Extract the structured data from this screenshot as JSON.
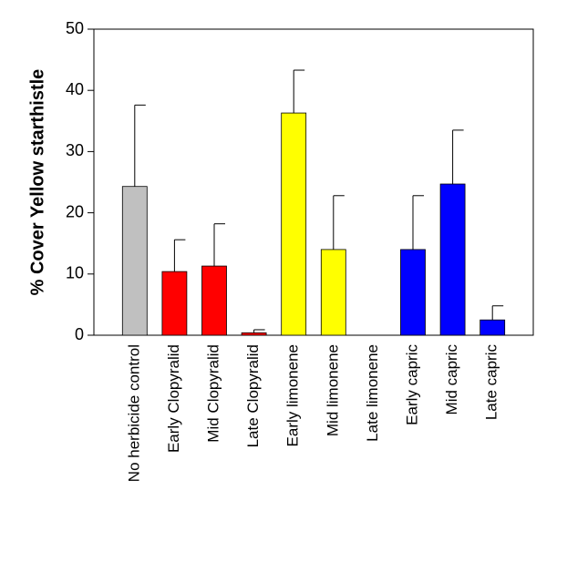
{
  "chart_data": {
    "type": "bar",
    "ylabel": "% Cover Yellow starthistle",
    "categories": [
      "No herbicide control",
      "Early Clopyralid",
      "Mid Clopyralid",
      "Late Clopyralid",
      "Early limonene",
      "Mid limonene",
      "Late limonene",
      "Early capric",
      "Mid capric",
      "Late capric"
    ],
    "values": [
      24.3,
      10.4,
      11.3,
      0.4,
      36.3,
      14.0,
      0,
      14.0,
      24.7,
      2.5
    ],
    "errors": [
      13.3,
      5.2,
      6.9,
      0.5,
      7.0,
      8.8,
      0,
      8.8,
      8.8,
      2.3
    ],
    "colors": [
      "#c0c0c0",
      "#ff0000",
      "#ff0000",
      "#ff0000",
      "#ffff00",
      "#ffff00",
      "#ffff00",
      "#0000ff",
      "#0000ff",
      "#0000ff"
    ],
    "ylim": [
      0,
      50
    ],
    "yticks": [
      0,
      10,
      20,
      30,
      40,
      50
    ]
  }
}
